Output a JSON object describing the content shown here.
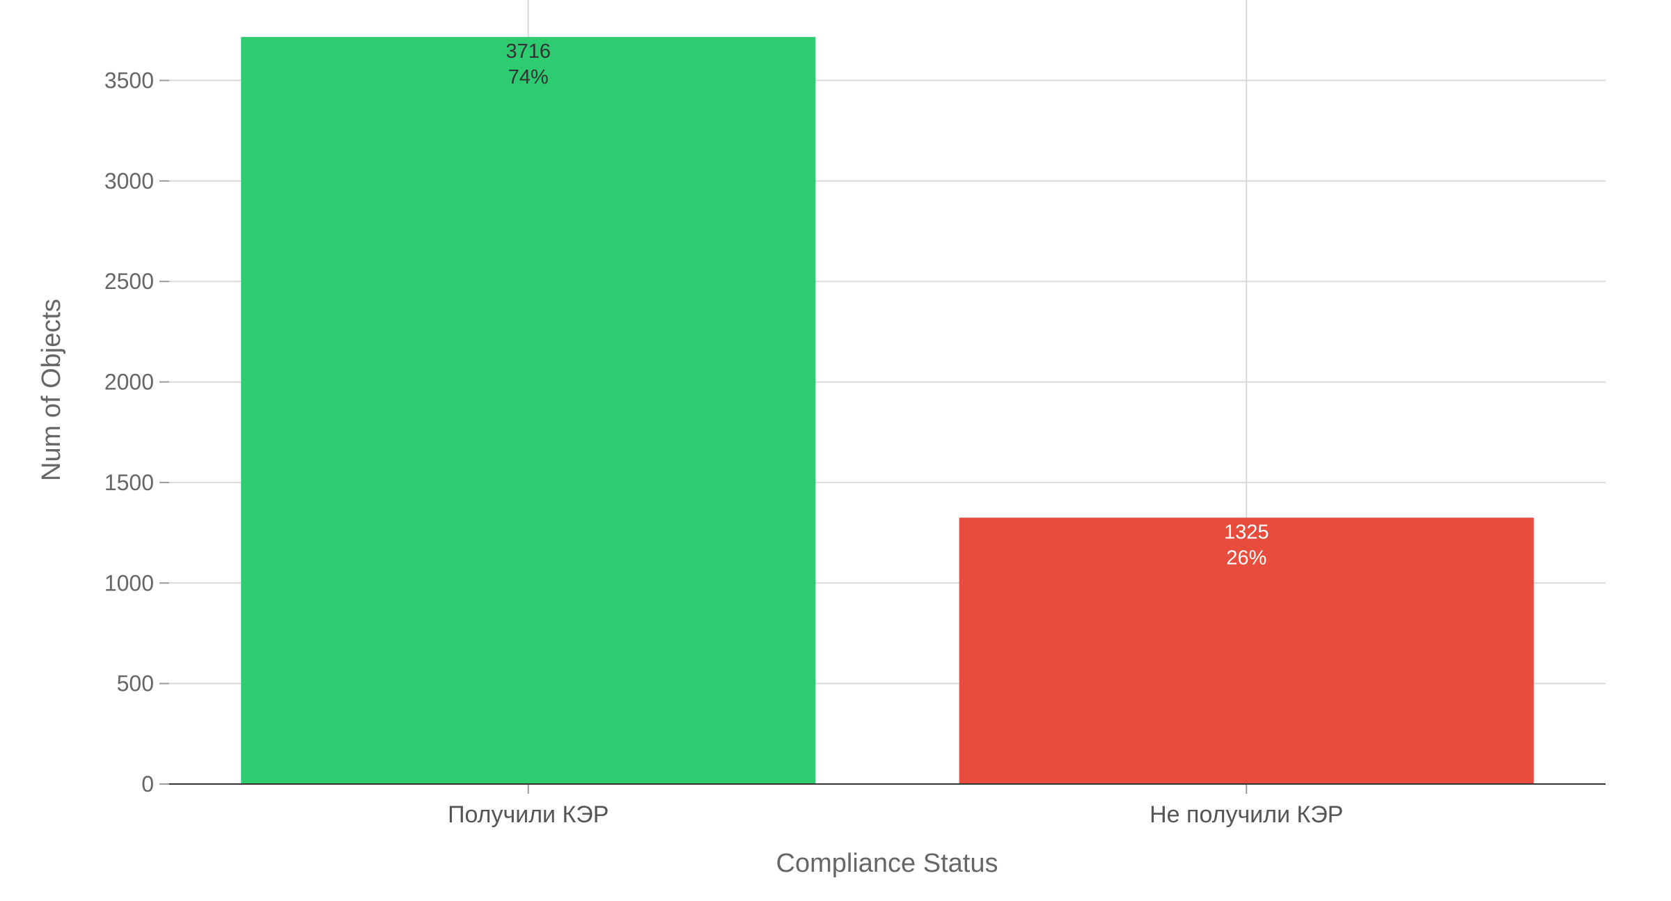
{
  "chart_data": {
    "type": "bar",
    "categories": [
      "Получили КЭР",
      "Не получили КЭР"
    ],
    "values": [
      3716,
      1325
    ],
    "percent_labels": [
      "74%",
      "26%"
    ],
    "bar_colors": [
      "#2ecc71",
      "#e74c3c"
    ],
    "data_label_colors": [
      "#333333",
      "#ffffff"
    ],
    "xlabel": "Compliance Status",
    "ylabel": "Num of Objects",
    "ylim": [
      0,
      3900
    ],
    "yticks": [
      0,
      500,
      1000,
      1500,
      2000,
      2500,
      3000,
      3500
    ],
    "grid": true
  }
}
